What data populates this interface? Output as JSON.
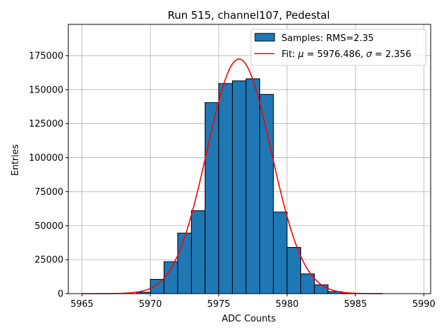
{
  "chart_data": {
    "type": "bar",
    "title": "Run 515, channel107, Pedestal",
    "xlabel": "ADC Counts",
    "ylabel": "Entries",
    "xlim": [
      5964,
      5990.5
    ],
    "ylim": [
      0,
      198000
    ],
    "xticks": [
      5965,
      5970,
      5975,
      5980,
      5985,
      5990
    ],
    "yticks": [
      0,
      25000,
      50000,
      75000,
      100000,
      125000,
      150000,
      175000
    ],
    "grid": true,
    "legend_position": "top-right",
    "colors": {
      "bar_fill": "#1f77b4",
      "bar_edge": "#000000",
      "fit_line": "#ff0000",
      "grid": "#b0b0b0"
    },
    "histogram": {
      "name": "Samples: RMS=2.35",
      "bin_edges": [
        5969,
        5970,
        5971,
        5972,
        5973,
        5974,
        5975,
        5976,
        5977,
        5978,
        5979,
        5980,
        5981,
        5982,
        5983,
        5984,
        5985
      ],
      "counts": [
        1000,
        10500,
        23500,
        44500,
        61000,
        140500,
        154500,
        156500,
        158000,
        146500,
        60000,
        34000,
        14500,
        6500,
        1500,
        300
      ]
    },
    "fit": {
      "name": "Fit: μ = 5976.486, σ = 2.356",
      "label_parts": [
        "Fit: ",
        "μ",
        " = 5976.486, ",
        "σ",
        " = 2.356"
      ],
      "mu": 5976.486,
      "sigma": 2.356,
      "amplitude": 172500,
      "x_range": [
        5965,
        5987
      ]
    }
  }
}
